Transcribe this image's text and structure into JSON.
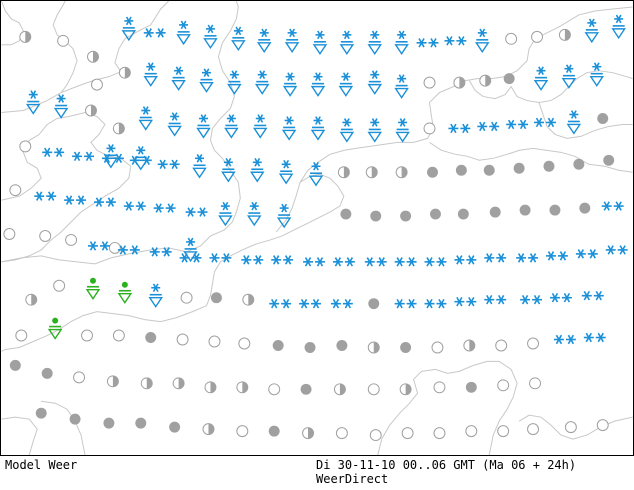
{
  "footer": {
    "title": "Model Weer",
    "validity": "Di 30-11-10 00..06 GMT (Ma 06 + 24h)",
    "source": "WeerDirect"
  },
  "colors": {
    "snow": "#1a90d8",
    "rain": "#2bb01f",
    "cloud": "#a0a0a0",
    "coast": "#c8c8c8"
  },
  "symbol_types": [
    "snow-shower",
    "snow",
    "rain-shower",
    "overcast",
    "half-cloudy",
    "clear"
  ],
  "grid": {
    "columns": 20,
    "rows": 14,
    "cells": [
      "...E..S.S.S.S.SS.SS.S..S.SS.S...S.SS",
      "EHEE.H..S.S.S.S.S.S.S.S.S..H.H.E.E",
      "S.S.HHH.S.S.S.S.S.S.S.S.E.O.**.**.**.**.**..S",
      "H.**.**.**.**.**.**.S.S.S.S.H.H.O.O.O.O.O.O.O",
      "E.**.**.**.**.**.S.S.S.E.O.O.O.O.O.O.O.O.**",
      "E.E.**.**.**.**.**.**.**.**.**.**.**.**.**.**.**.**.**.**",
      "E.R.R.S.E.O.H.**.**.**.O.**.**.**.**.**.**.**.**",
      "R.E.E.O.E.E.E.O.O.O.O.H.O.E.H.H.O.**.**",
      "O.O.E.H.H.E.E.E.H.O.E.O.O.O.H.O.O.O.O",
      "E.O.E.H.H.H.H.H.E.O.E.O.E.O.E.E.E",
      "O.O.O.O.O.H.E.O.E.E.E.E.E.E.E"
    ]
  }
}
